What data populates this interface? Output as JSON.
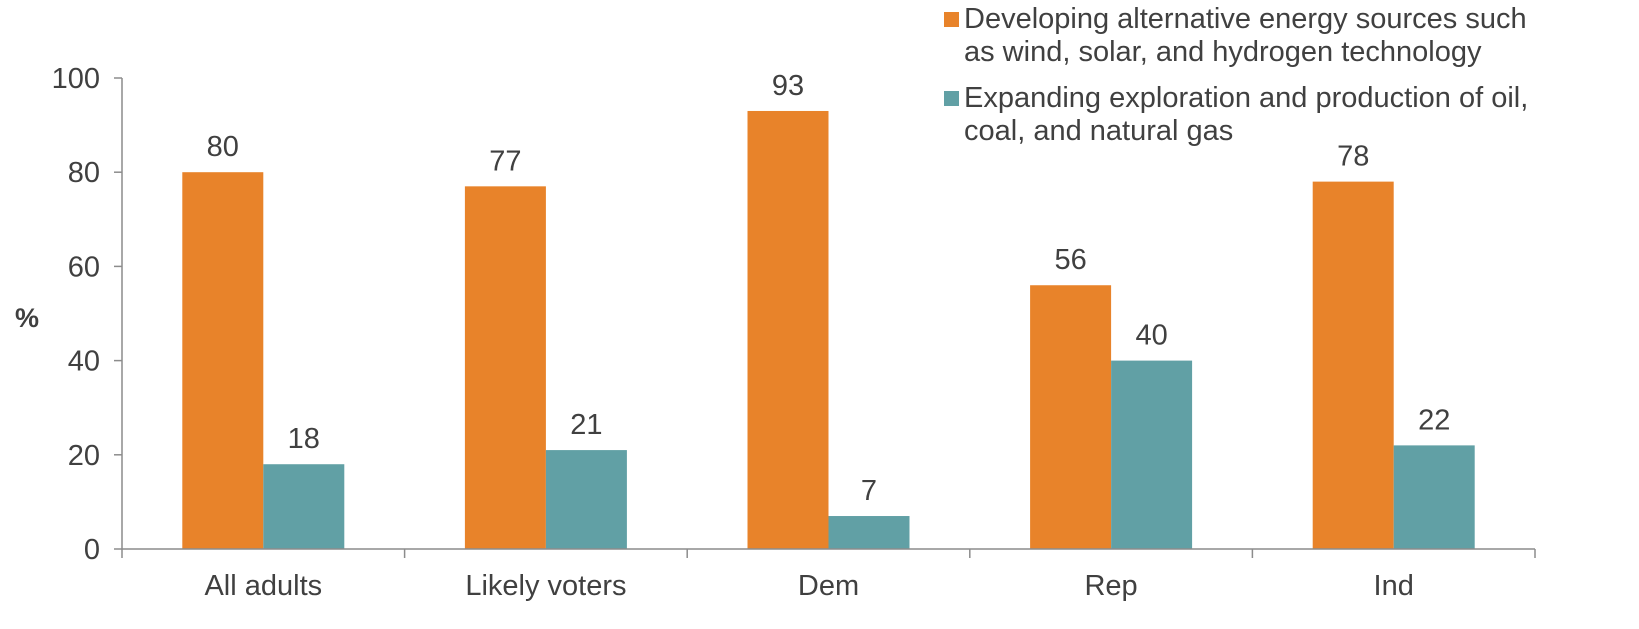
{
  "chart_data": {
    "type": "bar",
    "ylabel": "%",
    "xlabel": "",
    "ylim": [
      0,
      100
    ],
    "yticks": [
      0,
      20,
      40,
      60,
      80,
      100
    ],
    "grid": false,
    "legend_position": "top-right",
    "categories": [
      "All adults",
      "Likely voters",
      "Dem",
      "Rep",
      "Ind"
    ],
    "series": [
      {
        "name": "Developing alternative energy sources such as wind, solar, and hydrogen technology",
        "legend_lines": [
          "Developing alternative energy sources such",
          "as wind, solar, and hydrogen technology"
        ],
        "color": "#e8832a",
        "values": [
          80,
          77,
          93,
          56,
          78
        ]
      },
      {
        "name": "Expanding exploration and production of oil, coal, and natural gas",
        "legend_lines": [
          "Expanding exploration and production of oil,",
          "coal, and natural gas"
        ],
        "color": "#61a0a5",
        "values": [
          18,
          21,
          7,
          40,
          22
        ]
      }
    ]
  }
}
